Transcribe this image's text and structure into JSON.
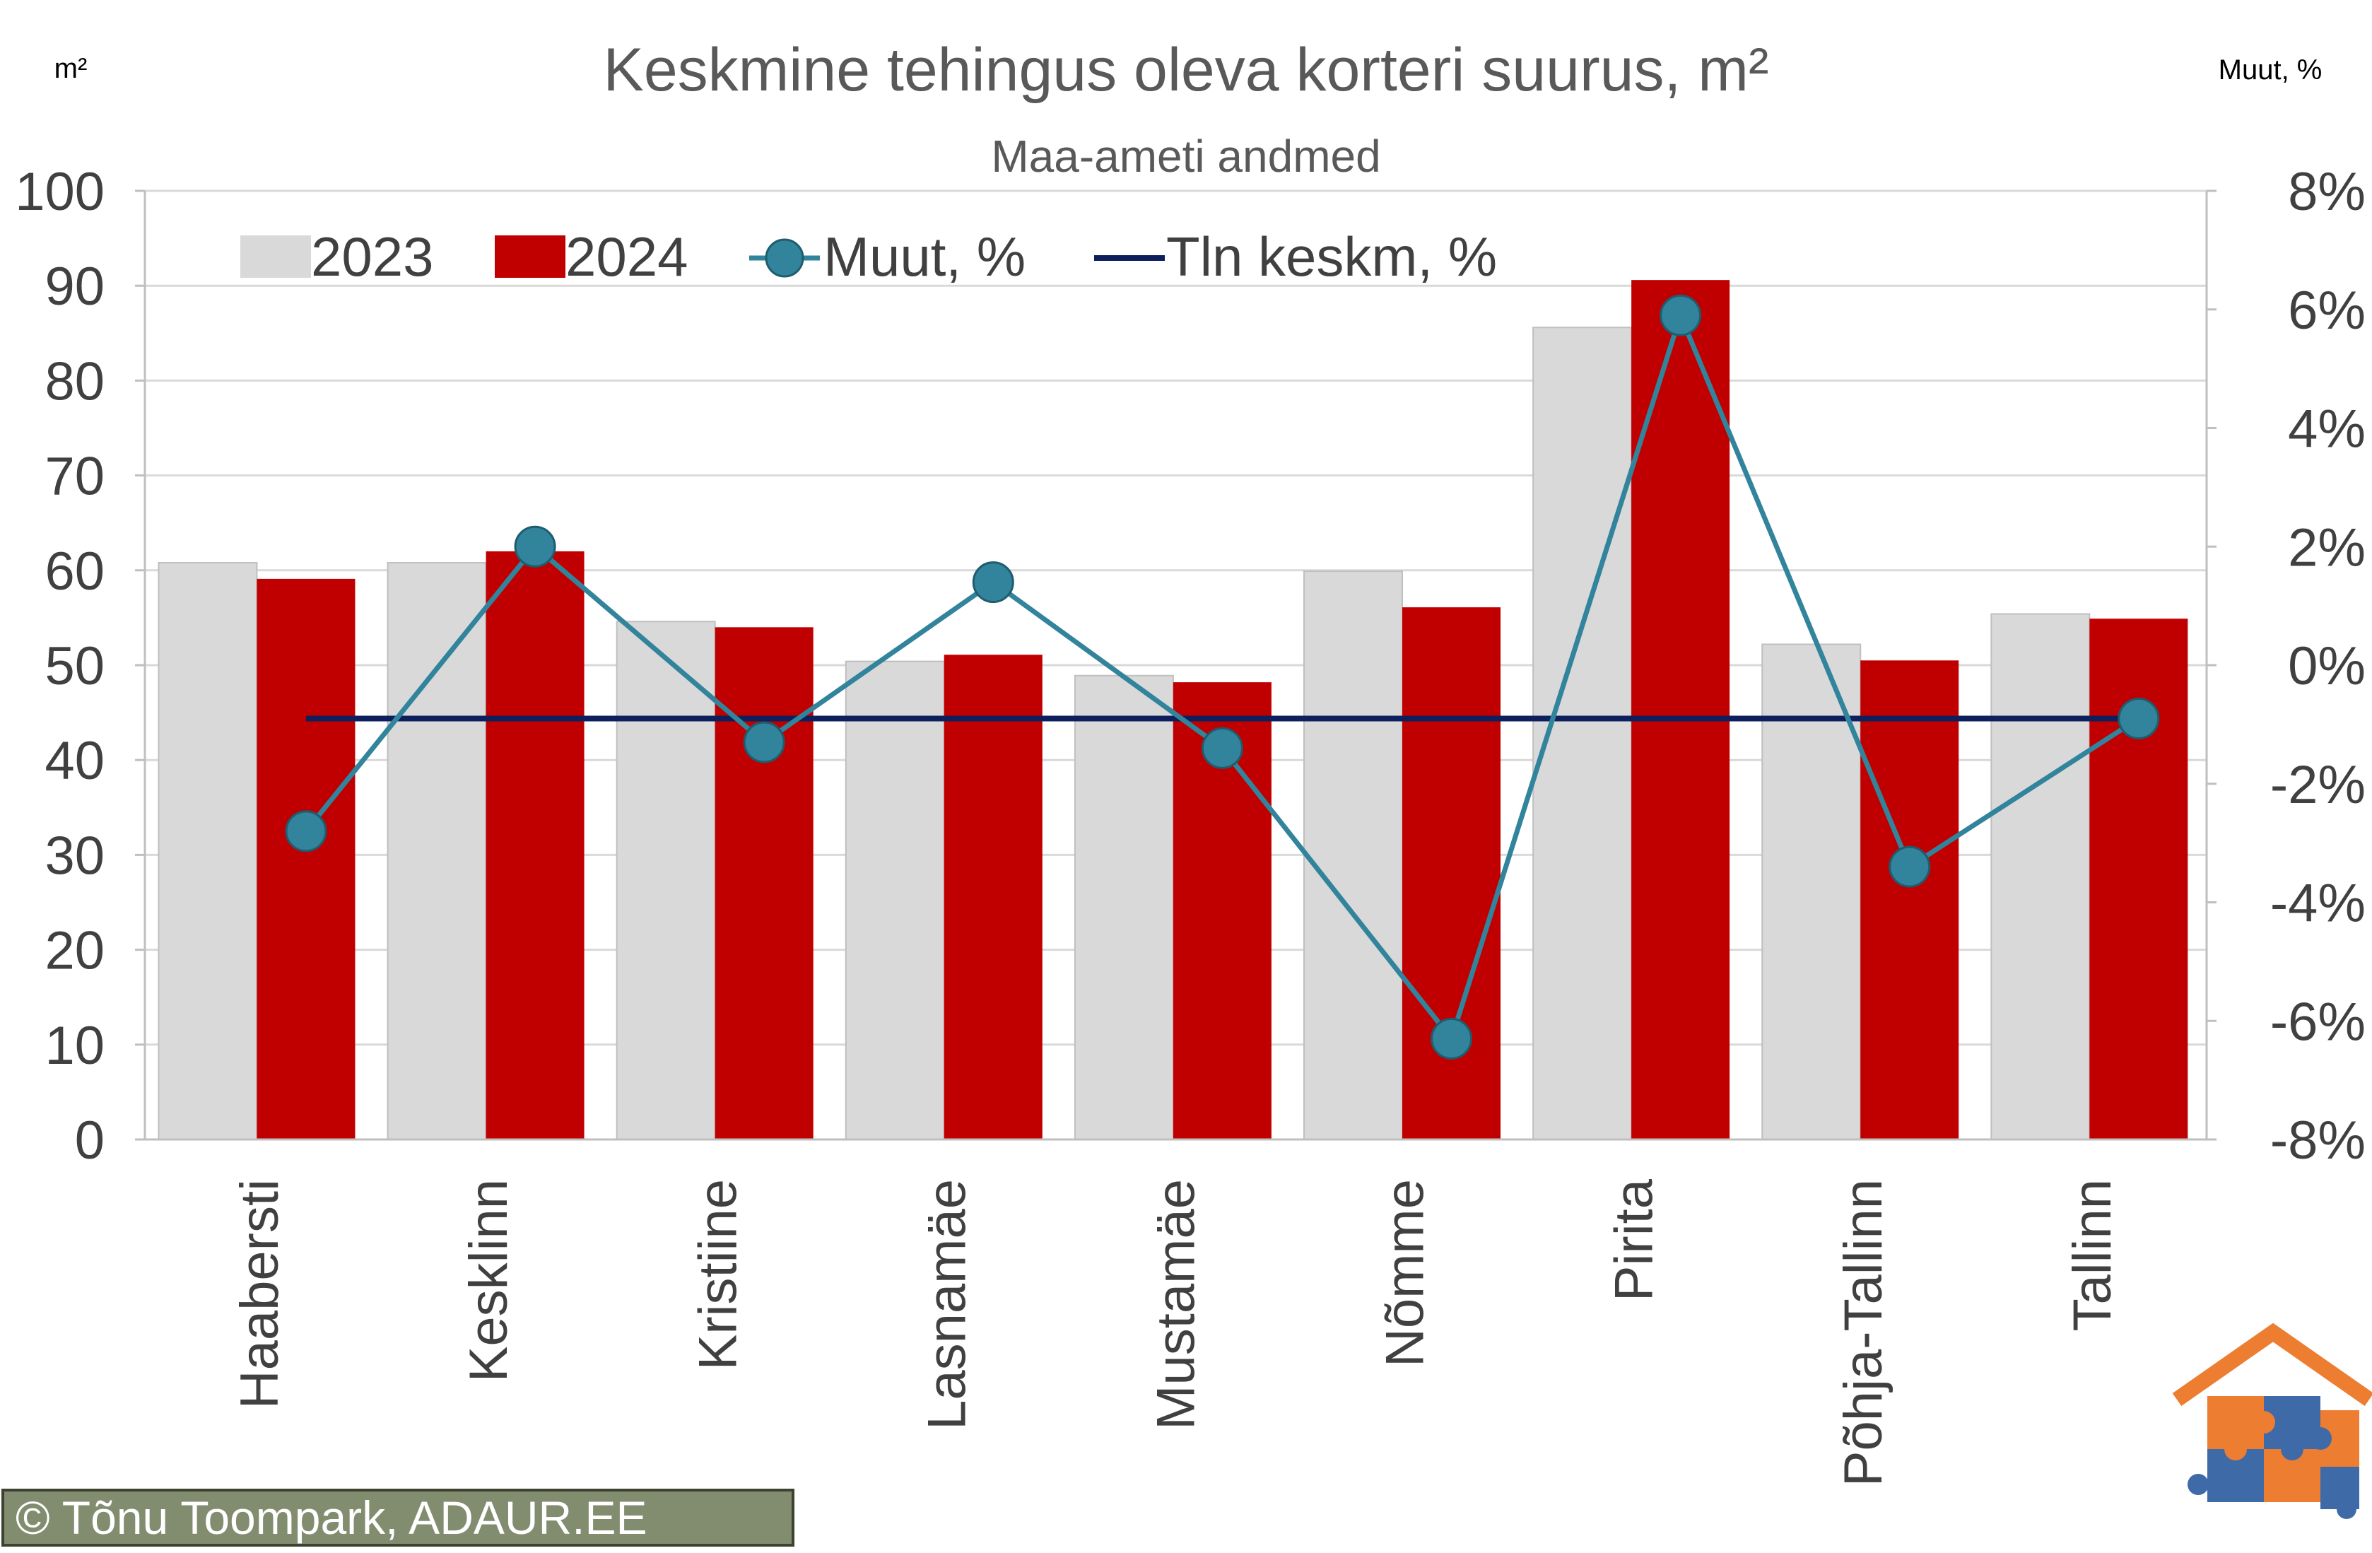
{
  "chart_data": {
    "type": "bar",
    "title": "Keskmine tehingus oleva korteri suurus, m²",
    "subtitle": "Maa-ameti andmed",
    "left_axis_unit": "m²",
    "right_axis_unit": "Muut, %",
    "categories": [
      "Haabersti",
      "Kesklinn",
      "Kristiine",
      "Lasnamäe",
      "Mustamäe",
      "Nõmme",
      "Pirita",
      "Põhja-Tallinn",
      "Tallinn"
    ],
    "series": [
      {
        "name": "2023",
        "type": "bar",
        "axis": "left",
        "color": "#d9d9d9",
        "values": [
          60.8,
          60.8,
          54.6,
          50.4,
          48.9,
          59.9,
          85.6,
          52.2,
          55.4
        ]
      },
      {
        "name": "2024",
        "type": "bar",
        "axis": "left",
        "color": "#c00000",
        "values": [
          59.1,
          62.0,
          54.0,
          51.1,
          48.2,
          56.1,
          90.6,
          50.5,
          54.9
        ]
      },
      {
        "name": "Muut, %",
        "type": "line-marker",
        "axis": "right",
        "color": "#31849b",
        "values": [
          -2.8,
          2.0,
          -1.3,
          1.4,
          -1.4,
          -6.3,
          5.9,
          -3.4,
          -0.9
        ]
      },
      {
        "name": "Tln keskm, %",
        "type": "line",
        "axis": "right",
        "color": "#0d1f5c",
        "values": [
          -0.9,
          -0.9,
          -0.9,
          -0.9,
          -0.9,
          -0.9,
          -0.9,
          -0.9,
          -0.9
        ]
      }
    ],
    "y_left": {
      "min": 0,
      "max": 100,
      "ticks": [
        "0",
        "10",
        "20",
        "30",
        "40",
        "50",
        "60",
        "70",
        "80",
        "90",
        "100"
      ]
    },
    "y_right": {
      "min": -8,
      "max": 8,
      "ticks": [
        "-8%",
        "-6%",
        "-4%",
        "-2%",
        "0%",
        "2%",
        "4%",
        "6%",
        "8%"
      ]
    },
    "grid": true,
    "legend_position": "top-left",
    "copyright": "© Tõnu Toompark, ADAUR.EE",
    "logo": "adaur-house-puzzle-logo"
  }
}
